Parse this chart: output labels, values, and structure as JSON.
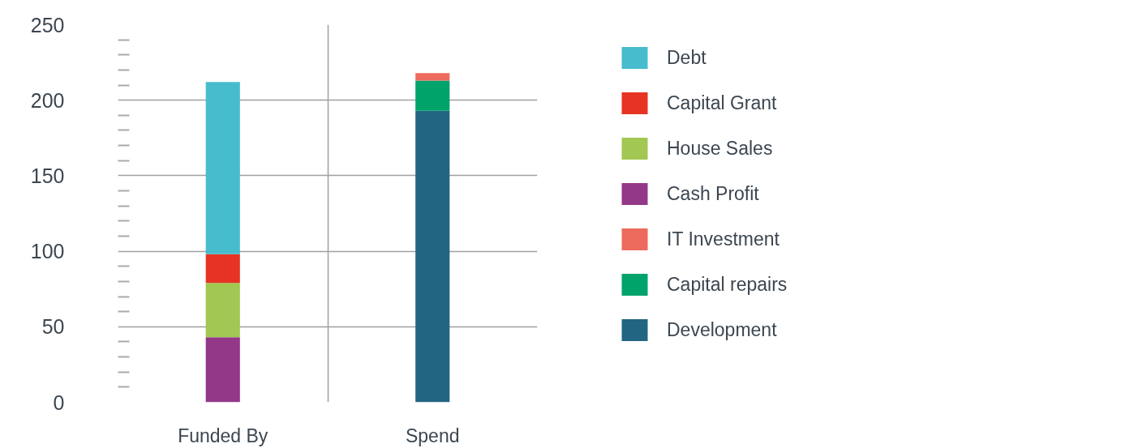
{
  "chart_data": {
    "type": "bar",
    "stacked": true,
    "categories": [
      "Funded By",
      "Spend"
    ],
    "series": [
      {
        "name": "Development",
        "color": "#226582",
        "values": [
          null,
          193
        ]
      },
      {
        "name": "Capital repairs",
        "color": "#00a36a",
        "values": [
          null,
          20
        ]
      },
      {
        "name": "IT Investment",
        "color": "#ed6b5c",
        "values": [
          null,
          5
        ]
      },
      {
        "name": "Cash Profit",
        "color": "#933789",
        "values": [
          43,
          null
        ]
      },
      {
        "name": "House Sales",
        "color": "#a2c752",
        "values": [
          36,
          null
        ]
      },
      {
        "name": "Capital Grant",
        "color": "#e63323",
        "values": [
          19,
          null
        ]
      },
      {
        "name": "Debt",
        "color": "#47bccd",
        "values": [
          114,
          null
        ]
      }
    ],
    "ylim": [
      0,
      250
    ],
    "yticks": [
      0,
      {
        "value": 10,
        "label": null
      },
      {
        "value": 20,
        "label": null
      },
      {
        "value": 30,
        "label": null
      },
      {
        "value": 40,
        "label": null
      },
      50,
      {
        "value": 60,
        "label": null
      },
      {
        "value": 70,
        "label": null
      },
      {
        "value": 80,
        "label": null
      },
      {
        "value": 90,
        "label": null
      },
      100,
      {
        "value": 110,
        "label": null
      },
      {
        "value": 120,
        "label": null
      },
      {
        "value": 130,
        "label": null
      },
      {
        "value": 140,
        "label": null
      },
      150,
      {
        "value": 160,
        "label": null
      },
      {
        "value": 170,
        "label": null
      },
      {
        "value": 180,
        "label": null
      },
      {
        "value": 190,
        "label": null
      },
      200,
      {
        "value": 210,
        "label": null
      },
      {
        "value": 220,
        "label": null
      },
      {
        "value": 230,
        "label": null
      },
      {
        "value": 240,
        "label": null
      },
      250
    ],
    "grid": true,
    "legend": "right"
  }
}
